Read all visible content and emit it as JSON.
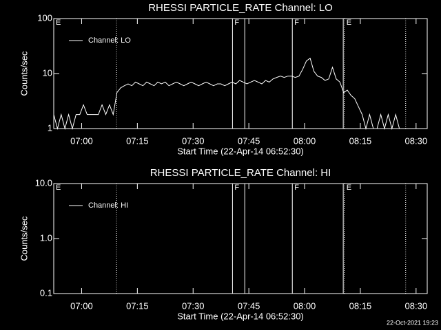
{
  "chart_data": [
    {
      "type": "line",
      "title": "RHESSI PARTICLE_RATE Channel: LO",
      "xlabel": "Start Time (22-Apr-14 06:52:30)",
      "ylabel": "Counts/sec",
      "log_y": true,
      "legend": "upper left",
      "color": "#ffffff",
      "xlim": [
        0,
        100.5
      ],
      "xticks": [
        {
          "value": 7.5,
          "label": "07:00"
        },
        {
          "value": 22.5,
          "label": "07:15"
        },
        {
          "value": 37.5,
          "label": "07:30"
        },
        {
          "value": 52.5,
          "label": "07:45"
        },
        {
          "value": 67.5,
          "label": "08:00"
        },
        {
          "value": 82.5,
          "label": "08:15"
        },
        {
          "value": 97.5,
          "label": "08:30"
        }
      ],
      "ylim": [
        1,
        100
      ],
      "yticks": [
        1,
        10,
        100
      ],
      "vlines": [
        {
          "x": 16.9,
          "dashed": true
        },
        {
          "x": 48.1,
          "dashed": false
        },
        {
          "x": 51.4,
          "dashed": false
        },
        {
          "x": 64.2,
          "dashed": false
        },
        {
          "x": 77.9,
          "dashed": false
        },
        {
          "x": 78.2,
          "dashed": true
        },
        {
          "x": 94.7,
          "dashed": true
        }
      ],
      "annotations": [
        {
          "x": 0,
          "text": "E"
        },
        {
          "x": 48.1,
          "text": "F"
        },
        {
          "x": 64.2,
          "text": "F"
        },
        {
          "x": 78.2,
          "text": "E"
        }
      ],
      "x": [
        0,
        1,
        2,
        3,
        4,
        5,
        6,
        7,
        8,
        9,
        10,
        11,
        12,
        13,
        14,
        15,
        16,
        17,
        18,
        19,
        20,
        21,
        22,
        23,
        24,
        25,
        26,
        27,
        28,
        29,
        30,
        31,
        32,
        33,
        34,
        35,
        36,
        37,
        38,
        39,
        40,
        41,
        42,
        43,
        44,
        45,
        46,
        47,
        48,
        49,
        50,
        51,
        52,
        53,
        54,
        55,
        56,
        57,
        58,
        59,
        60,
        61,
        62,
        63,
        64,
        65,
        66,
        67,
        68,
        69,
        70,
        71,
        72,
        73,
        74,
        75,
        76,
        77,
        78,
        79,
        80,
        81,
        82,
        83,
        84,
        85,
        86,
        87,
        88,
        89,
        90,
        91,
        92,
        93
      ],
      "series": [
        {
          "name": "Channel: LO",
          "color": "#ffffff",
          "values": [
            1.8,
            1,
            1.8,
            1,
            1.8,
            1,
            1.8,
            1.8,
            2.7,
            1.8,
            1.8,
            1.8,
            1.8,
            2.7,
            1.8,
            2.7,
            1.8,
            4.5,
            5.5,
            6,
            6.5,
            6,
            7,
            6.5,
            6,
            7,
            6.5,
            6,
            7,
            6.5,
            7,
            6,
            6.5,
            7,
            6.5,
            6,
            6.5,
            7,
            6.5,
            6,
            6.5,
            7,
            6.5,
            6,
            6.5,
            6.5,
            6,
            6.5,
            7,
            6.5,
            7.5,
            7,
            6.5,
            7,
            7.5,
            7,
            6.5,
            7.5,
            7,
            8,
            8.5,
            9,
            8.5,
            9,
            9,
            8.5,
            9,
            12,
            17,
            19,
            11,
            9,
            8.5,
            7.5,
            8,
            13,
            8,
            7,
            4.5,
            5,
            4,
            3.5,
            2.5,
            1.8,
            1,
            1.8,
            1,
            1,
            1.8,
            1,
            1.8,
            1,
            1.8,
            1
          ]
        }
      ]
    },
    {
      "type": "line",
      "title": "RHESSI PARTICLE_RATE Channel: HI",
      "xlabel": "Start Time (22-Apr-14 06:52:30)",
      "ylabel": "Counts/sec",
      "log_y": true,
      "legend": "upper left",
      "color": "#ffffff",
      "xlim": [
        0,
        100.5
      ],
      "xticks": [
        {
          "value": 7.5,
          "label": "07:00"
        },
        {
          "value": 22.5,
          "label": "07:15"
        },
        {
          "value": 37.5,
          "label": "07:30"
        },
        {
          "value": 52.5,
          "label": "07:45"
        },
        {
          "value": 67.5,
          "label": "08:00"
        },
        {
          "value": 82.5,
          "label": "08:15"
        },
        {
          "value": 97.5,
          "label": "08:30"
        }
      ],
      "ylim": [
        0.1,
        10
      ],
      "yticks": [
        0.1,
        {
          "value": 1,
          "label": "1.0"
        },
        {
          "value": 10,
          "label": "10.0"
        }
      ],
      "vlines": [
        {
          "x": 16.9,
          "dashed": true
        },
        {
          "x": 48.1,
          "dashed": false
        },
        {
          "x": 51.4,
          "dashed": false
        },
        {
          "x": 64.2,
          "dashed": false
        },
        {
          "x": 77.9,
          "dashed": false
        },
        {
          "x": 78.2,
          "dashed": true
        },
        {
          "x": 94.7,
          "dashed": true
        }
      ],
      "annotations": [
        {
          "x": 0,
          "text": "E"
        },
        {
          "x": 48.1,
          "text": "F"
        },
        {
          "x": 64.2,
          "text": "F"
        },
        {
          "x": 78.2,
          "text": "E"
        }
      ],
      "x": [],
      "series": [
        {
          "name": "Channel: HI",
          "color": "#ffffff",
          "values": []
        }
      ]
    }
  ],
  "footer": "22-Oct-2021 19:23"
}
